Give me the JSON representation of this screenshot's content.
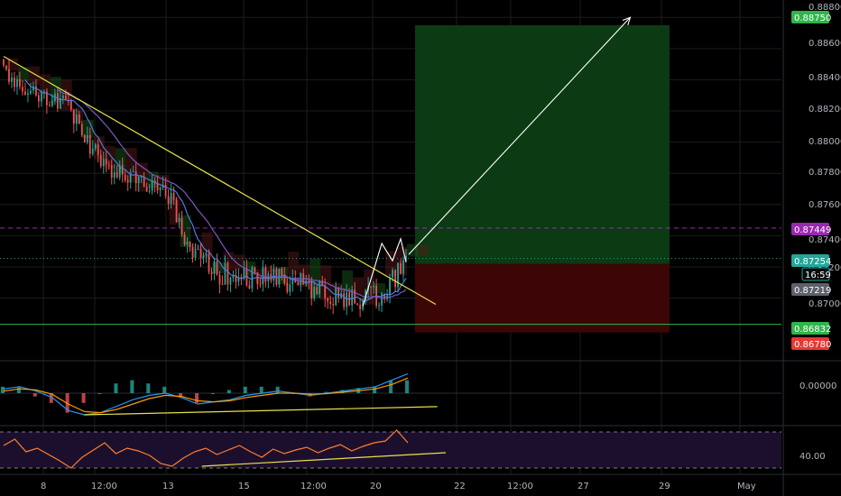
{
  "colors": {
    "background": "#000000",
    "grid": "#1c1c1c",
    "axis_text": "#b2b5be",
    "up": "#26a69a",
    "down": "#ef5350",
    "trendline": "#e6e14a",
    "target_zone": "#0b3a13",
    "stop_zone": "#3d0606",
    "dashed_level": "#9c27b0",
    "badge_green": "#2fb54a",
    "badge_red": "#e53935",
    "badge_purple": "#9c27b0",
    "badge_teal": "#22a69a",
    "badge_gray": "#5d606b",
    "ma_blue": "#4f7bd9",
    "ma_purple": "#7e57c2",
    "cloud_green": "#1b5e20",
    "cloud_red": "#5d1a1a",
    "osc_line": "#ff7f2a",
    "rsi_band_fill": "#1c0f2e",
    "macd_line": "#2196f3",
    "signal_line": "#ff9800"
  },
  "axis": {
    "y_ticks": [
      "0.88800",
      "0.88600",
      "0.88400",
      "0.88200",
      "0.88000",
      "0.87800",
      "0.87600",
      "0.87400",
      "0.87200",
      "0.87000"
    ],
    "x_ticks": [
      "8",
      "12:00",
      "13",
      "15",
      "12:00",
      "20",
      "22",
      "12:00",
      "27",
      "29",
      "May"
    ],
    "macd_ticks": [
      "0.00000"
    ],
    "rsi_ticks": [
      "40.00"
    ]
  },
  "badges": {
    "target": "0.88750",
    "dashed_level": "0.87449",
    "last_price": "0.87254",
    "countdown": "16:59",
    "entry": "0.87219",
    "support": "0.86832",
    "stop": "0.86780"
  },
  "chart_data": [
    {
      "type": "candlestick",
      "panel": "price",
      "ylim": [
        0.8661,
        0.889
      ],
      "y_ticks": [
        0.886,
        0.884,
        0.882,
        0.88,
        0.878,
        0.876,
        0.874,
        0.872,
        0.87,
        0.888
      ],
      "x_ticks": [
        "8",
        "12:00",
        "13",
        "15",
        "12:00",
        "20",
        "22",
        "12:00",
        "27",
        "29",
        "May"
      ],
      "candles": {
        "seed": 7,
        "count": 150,
        "path": [
          [
            0,
            0.8845
          ],
          [
            15,
            0.883
          ],
          [
            25,
            0.882
          ],
          [
            35,
            0.879
          ],
          [
            50,
            0.8775
          ],
          [
            60,
            0.877
          ],
          [
            68,
            0.8735
          ],
          [
            80,
            0.8716
          ],
          [
            92,
            0.8713
          ],
          [
            108,
            0.871
          ],
          [
            128,
            0.8698
          ],
          [
            140,
            0.8702
          ],
          [
            149,
            0.8722
          ]
        ]
      },
      "long_position": {
        "entry": 0.87219,
        "target": 0.8875,
        "stop": 0.8678
      },
      "levels": {
        "dashed_resistance": 0.87449,
        "support": 0.86832,
        "last_price": 0.87254
      },
      "trendline": [
        [
          0,
          0.8855
        ],
        [
          160,
          0.8696
        ]
      ],
      "projection_arrow": [
        [
          150,
          0.8728
        ],
        [
          232,
          0.888
        ]
      ],
      "zigzag": [
        [
          133,
          0.8695
        ],
        [
          140,
          0.8735
        ],
        [
          144,
          0.8724
        ],
        [
          147,
          0.8738
        ],
        [
          149,
          0.8723
        ]
      ]
    },
    {
      "type": "line",
      "panel": "macd",
      "series": [
        {
          "values": [
            0.2,
            0.3,
            0.1,
            -0.2,
            -0.8,
            -1.0,
            -0.9,
            -0.6,
            -0.3,
            -0.1,
            0.0,
            -0.2,
            -0.5,
            -0.4,
            -0.3,
            -0.1,
            0.0,
            0.1,
            0.0,
            -0.1,
            0.0,
            0.1,
            0.2,
            0.3,
            0.6,
            0.9
          ]
        },
        {
          "values": [
            0.1,
            0.2,
            0.15,
            -0.05,
            -0.5,
            -0.85,
            -0.9,
            -0.75,
            -0.5,
            -0.25,
            -0.1,
            -0.15,
            -0.35,
            -0.4,
            -0.35,
            -0.2,
            -0.1,
            0.0,
            0.0,
            -0.05,
            -0.02,
            0.05,
            0.12,
            0.2,
            0.4,
            0.7
          ]
        }
      ],
      "trendline": [
        [
          0.1,
          -1.0
        ],
        [
          0.52,
          -0.62
        ]
      ]
    },
    {
      "type": "line",
      "panel": "rsi",
      "ylim": [
        25,
        75
      ],
      "bands": [
        30,
        70
      ],
      "series": [
        {
          "values": [
            55,
            62,
            48,
            52,
            45,
            38,
            30,
            42,
            50,
            58,
            46,
            52,
            49,
            44,
            35,
            32,
            41,
            48,
            52,
            45,
            50,
            55,
            48,
            42,
            51,
            46,
            50,
            53,
            47,
            52,
            56,
            49,
            54,
            58,
            60,
            72,
            58
          ]
        }
      ],
      "trendline": [
        [
          0.24,
          32
        ],
        [
          0.53,
          47
        ]
      ]
    }
  ]
}
